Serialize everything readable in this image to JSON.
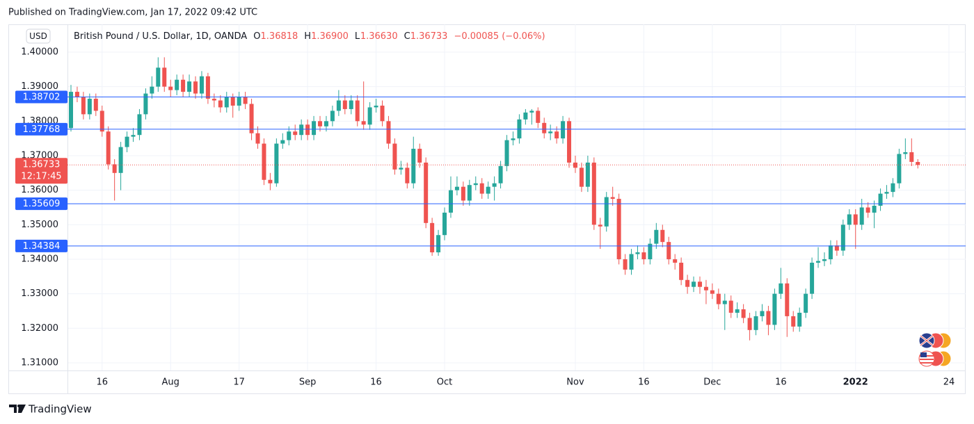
{
  "header": "Published on TradingView.com, Jan 17, 2022 09:42 UTC",
  "footer": "TradingView",
  "chart_data": {
    "type": "candlestick",
    "currency": "USD",
    "symbol": "British Pound / U.S. Dollar, 1D, OANDA",
    "ohlc_legend": [
      {
        "key": "O",
        "text": "1.36818"
      },
      {
        "key": "H",
        "text": "1.36900"
      },
      {
        "key": "L",
        "text": "1.36630"
      },
      {
        "key": "C",
        "text": "1.36733"
      }
    ],
    "change": "−0.00085 (−0.06%)",
    "up_color": "#26a69a",
    "down_color": "#ef5350",
    "grid": true,
    "ylim": [
      1.30778,
      1.40805
    ],
    "yticks": [
      {
        "value": 1.31,
        "label": "1.31000"
      },
      {
        "value": 1.32,
        "label": "1.32000"
      },
      {
        "value": 1.33,
        "label": "1.33000"
      },
      {
        "value": 1.34,
        "label": "1.34000"
      },
      {
        "value": 1.35,
        "label": "1.35000"
      },
      {
        "value": 1.36,
        "label": "1.36000"
      },
      {
        "value": 1.37,
        "label": "1.37000"
      },
      {
        "value": 1.38,
        "label": "1.38000"
      },
      {
        "value": 1.39,
        "label": "1.39000"
      },
      {
        "value": 1.4,
        "label": "1.40000"
      }
    ],
    "hlines": [
      1.38702,
      1.37768,
      1.35609,
      1.34384
    ],
    "hline_color": "#2962ff",
    "last_price": 1.36733,
    "countdown": "12:17:45",
    "categories": [
      null,
      null,
      null,
      null,
      null,
      "16",
      null,
      null,
      null,
      null,
      null,
      null,
      null,
      null,
      null,
      null,
      "Aug",
      null,
      null,
      null,
      null,
      null,
      null,
      null,
      null,
      null,
      null,
      "17",
      null,
      null,
      null,
      null,
      null,
      null,
      null,
      null,
      null,
      null,
      "Sep",
      null,
      null,
      null,
      null,
      null,
      null,
      null,
      null,
      null,
      null,
      "16",
      null,
      null,
      null,
      null,
      null,
      null,
      null,
      null,
      null,
      null,
      "Oct",
      null,
      null,
      null,
      null,
      null,
      null,
      null,
      null,
      null,
      null,
      null,
      null,
      null,
      null,
      null,
      null,
      null,
      null,
      null,
      null,
      "Nov",
      null,
      null,
      null,
      null,
      null,
      null,
      null,
      null,
      null,
      null,
      "16",
      null,
      null,
      null,
      null,
      null,
      null,
      null,
      null,
      null,
      null,
      "Dec",
      null,
      null,
      null,
      null,
      null,
      null,
      null,
      null,
      null,
      null,
      "16",
      null,
      null,
      null,
      null,
      null,
      null,
      null,
      null,
      null,
      null,
      null,
      "2022",
      null,
      null,
      null,
      null,
      null,
      null,
      null,
      null,
      null,
      null,
      null,
      null,
      null,
      null,
      "24"
    ],
    "open": [
      1.378,
      1.3885,
      1.387,
      1.382,
      1.3865,
      1.383,
      1.377,
      1.3675,
      1.365,
      1.3725,
      1.3755,
      1.376,
      1.382,
      1.388,
      1.39,
      1.3955,
      1.39,
      1.389,
      1.392,
      1.3885,
      1.3915,
      1.388,
      1.393,
      1.3865,
      1.386,
      1.384,
      1.387,
      1.3845,
      1.387,
      1.385,
      1.3765,
      1.3735,
      1.363,
      1.362,
      1.3735,
      1.3745,
      1.377,
      1.376,
      1.379,
      1.376,
      1.38,
      1.3785,
      1.38,
      1.383,
      1.386,
      1.3835,
      1.386,
      1.38,
      1.379,
      1.384,
      1.3845,
      1.38,
      1.3735,
      1.366,
      1.3665,
      1.362,
      1.372,
      1.368,
      1.3505,
      1.342,
      1.347,
      1.3535,
      1.36,
      1.361,
      1.357,
      1.3615,
      1.362,
      1.359,
      1.361,
      1.362,
      1.367,
      1.3745,
      1.375,
      1.3805,
      1.3825,
      1.383,
      1.3795,
      1.3765,
      1.377,
      1.375,
      1.38,
      1.368,
      1.3665,
      1.361,
      1.368,
      1.35,
      1.3495,
      1.358,
      1.3575,
      1.34,
      1.337,
      1.3415,
      1.342,
      1.34,
      1.3445,
      1.3485,
      1.345,
      1.34,
      1.339,
      1.334,
      1.332,
      1.3335,
      1.332,
      1.331,
      1.33,
      1.327,
      1.328,
      1.3245,
      1.3255,
      1.323,
      1.3195,
      1.3235,
      1.325,
      1.321,
      1.33,
      1.333,
      1.3235,
      1.3205,
      1.3245,
      1.33,
      1.339,
      1.3395,
      1.34,
      1.344,
      1.3425,
      1.35,
      1.353,
      1.35,
      1.355,
      1.3535,
      1.3555,
      1.359,
      1.3595,
      1.362,
      1.3705,
      1.371,
      1.36818,
      null,
      null,
      null,
      null,
      null
    ],
    "high": [
      1.3905,
      1.39,
      1.3885,
      1.388,
      1.388,
      1.3845,
      1.3785,
      1.369,
      1.374,
      1.377,
      1.378,
      1.3835,
      1.3895,
      1.393,
      1.3985,
      1.3985,
      1.392,
      1.3935,
      1.3935,
      1.3935,
      1.393,
      1.3945,
      1.394,
      1.388,
      1.3875,
      1.3885,
      1.388,
      1.3885,
      1.3885,
      1.3865,
      1.3785,
      1.375,
      1.365,
      1.375,
      1.3765,
      1.3785,
      1.379,
      1.3805,
      1.3805,
      1.3815,
      1.3815,
      1.3815,
      1.3845,
      1.389,
      1.3875,
      1.3875,
      1.3875,
      1.3915,
      1.3855,
      1.3865,
      1.386,
      1.3815,
      1.375,
      1.3685,
      1.368,
      1.3755,
      1.3735,
      1.3695,
      1.352,
      1.3485,
      1.355,
      1.364,
      1.364,
      1.3625,
      1.363,
      1.364,
      1.3635,
      1.3625,
      1.364,
      1.3685,
      1.376,
      1.377,
      1.382,
      1.3835,
      1.3835,
      1.384,
      1.381,
      1.379,
      1.3785,
      1.3815,
      1.381,
      1.37,
      1.368,
      1.37,
      1.3695,
      1.352,
      1.3595,
      1.361,
      1.359,
      1.3415,
      1.343,
      1.344,
      1.3435,
      1.346,
      1.3505,
      1.35,
      1.3465,
      1.3415,
      1.3405,
      1.3355,
      1.335,
      1.335,
      1.334,
      1.333,
      1.3315,
      1.33,
      1.3295,
      1.3275,
      1.327,
      1.3245,
      1.325,
      1.327,
      1.3265,
      1.3315,
      1.3375,
      1.3345,
      1.325,
      1.326,
      1.3315,
      1.3405,
      1.3435,
      1.342,
      1.3455,
      1.3455,
      1.3515,
      1.3545,
      1.3545,
      1.3575,
      1.3565,
      1.357,
      1.3605,
      1.3615,
      1.3635,
      1.372,
      1.375,
      1.375,
      1.369,
      null,
      null,
      null,
      null,
      null
    ],
    "low": [
      1.377,
      1.3855,
      1.3805,
      1.3805,
      1.3815,
      1.3755,
      1.366,
      1.357,
      1.36,
      1.371,
      1.374,
      1.3745,
      1.3805,
      1.3865,
      1.3885,
      1.3885,
      1.387,
      1.3875,
      1.387,
      1.387,
      1.3865,
      1.3865,
      1.385,
      1.384,
      1.3825,
      1.3825,
      1.381,
      1.383,
      1.3835,
      1.3745,
      1.372,
      1.3615,
      1.36,
      1.361,
      1.372,
      1.373,
      1.3745,
      1.3745,
      1.3745,
      1.3745,
      1.377,
      1.377,
      1.3785,
      1.3815,
      1.382,
      1.382,
      1.3785,
      1.3775,
      1.3775,
      1.3825,
      1.3785,
      1.372,
      1.3645,
      1.3645,
      1.3605,
      1.3605,
      1.3665,
      1.349,
      1.341,
      1.341,
      1.3455,
      1.352,
      1.3585,
      1.3555,
      1.3555,
      1.36,
      1.3575,
      1.3575,
      1.357,
      1.3605,
      1.3655,
      1.373,
      1.3735,
      1.379,
      1.379,
      1.378,
      1.375,
      1.3745,
      1.3735,
      1.3735,
      1.3665,
      1.365,
      1.3595,
      1.3595,
      1.3485,
      1.343,
      1.348,
      1.3555,
      1.3385,
      1.3355,
      1.3355,
      1.34,
      1.3385,
      1.3385,
      1.343,
      1.3435,
      1.3385,
      1.337,
      1.3325,
      1.33,
      1.3305,
      1.33,
      1.327,
      1.3285,
      1.3255,
      1.3195,
      1.323,
      1.323,
      1.3215,
      1.3165,
      1.318,
      1.322,
      1.318,
      1.3195,
      1.3285,
      1.3175,
      1.319,
      1.319,
      1.323,
      1.3285,
      1.3375,
      1.338,
      1.3385,
      1.341,
      1.341,
      1.3485,
      1.343,
      1.3485,
      1.352,
      1.349,
      1.354,
      1.3575,
      1.358,
      1.3605,
      1.369,
      1.367,
      1.3663,
      null,
      null,
      null,
      null,
      null
    ],
    "close": [
      1.3885,
      1.387,
      1.382,
      1.3865,
      1.383,
      1.377,
      1.3675,
      1.365,
      1.3725,
      1.3755,
      1.376,
      1.382,
      1.388,
      1.39,
      1.3955,
      1.39,
      1.389,
      1.392,
      1.3885,
      1.3915,
      1.388,
      1.393,
      1.3865,
      1.386,
      1.384,
      1.387,
      1.3845,
      1.387,
      1.385,
      1.3765,
      1.3735,
      1.363,
      1.362,
      1.3735,
      1.3745,
      1.377,
      1.376,
      1.379,
      1.376,
      1.38,
      1.3785,
      1.38,
      1.383,
      1.386,
      1.3835,
      1.386,
      1.38,
      1.379,
      1.384,
      1.3845,
      1.38,
      1.3735,
      1.366,
      1.3665,
      1.362,
      1.372,
      1.368,
      1.3505,
      1.342,
      1.347,
      1.3535,
      1.36,
      1.361,
      1.357,
      1.3615,
      1.362,
      1.359,
      1.361,
      1.362,
      1.367,
      1.3745,
      1.375,
      1.3805,
      1.3825,
      1.383,
      1.3795,
      1.3765,
      1.377,
      1.375,
      1.38,
      1.368,
      1.3665,
      1.361,
      1.368,
      1.35,
      1.3495,
      1.358,
      1.3575,
      1.34,
      1.337,
      1.3415,
      1.342,
      1.34,
      1.3445,
      1.3485,
      1.345,
      1.34,
      1.339,
      1.334,
      1.332,
      1.3335,
      1.332,
      1.331,
      1.33,
      1.327,
      1.328,
      1.3245,
      1.3255,
      1.323,
      1.3195,
      1.3235,
      1.325,
      1.321,
      1.33,
      1.333,
      1.3235,
      1.3205,
      1.3245,
      1.33,
      1.339,
      1.3395,
      1.34,
      1.344,
      1.3425,
      1.35,
      1.353,
      1.35,
      1.355,
      1.3535,
      1.3555,
      1.359,
      1.3595,
      1.362,
      1.3705,
      1.371,
      1.3682,
      1.36733,
      null,
      null,
      null,
      null,
      null
    ]
  }
}
